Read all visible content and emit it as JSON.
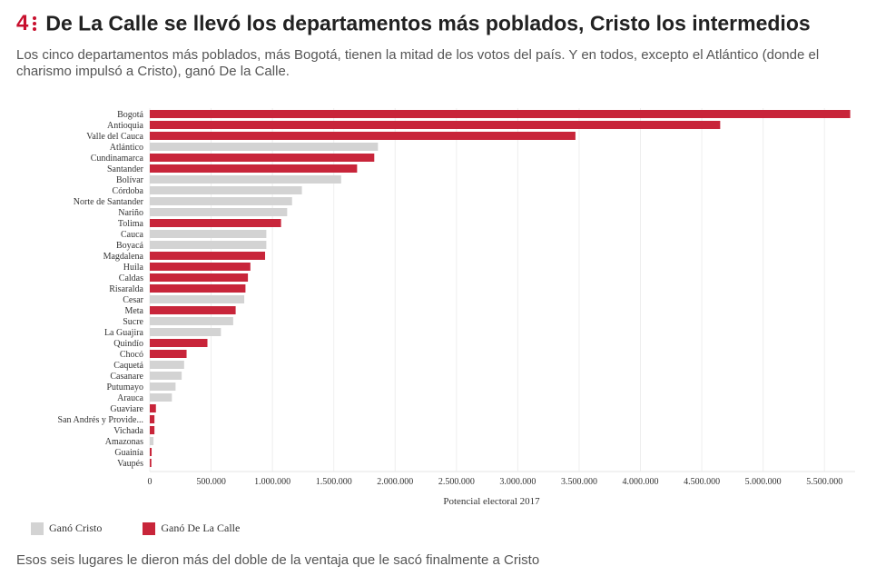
{
  "header": {
    "number": "4",
    "title": "De La Calle se llevó los departamentos más poblados, Cristo los intermedios",
    "subtitle": "Los cinco departamentos más poblados, más Bogotá, tienen la mitad de los votos del país. Y en todos, excepto el Atlántico (donde el charismo impulsó a Cristo), ganó De la Calle."
  },
  "legend": {
    "cristo_label": "Ganó Cristo",
    "delacalle_label": "Ganó De La Calle"
  },
  "colors": {
    "cristo": "#d3d3d3",
    "delacalle": "#c8253a",
    "accent": "#c8102e"
  },
  "footnote": "Esos seis lugares le dieron más del doble de la ventaja que le sacó finalmente a Cristo",
  "chart_data": {
    "type": "bar",
    "orientation": "horizontal",
    "xlabel": "Potencial electoral 2017",
    "xlim": [
      0,
      5750000
    ],
    "xticks": [
      0,
      500000,
      1000000,
      1500000,
      2000000,
      2500000,
      3000000,
      3500000,
      4000000,
      4500000,
      5000000,
      5500000
    ],
    "xtick_labels": [
      "0",
      "500.000",
      "1.000.000",
      "1.500.000",
      "2.000.000",
      "2.500.000",
      "3.000.000",
      "3.500.000",
      "4.000.000",
      "4.500.000",
      "5.000.000",
      "5.500.000"
    ],
    "grid": true,
    "legend_position": "bottom-left",
    "categories": [
      "Bogotá",
      "Antioquia",
      "Valle del Cauca",
      "Atlántico",
      "Cundinamarca",
      "Santander",
      "Bolívar",
      "Córdoba",
      "Norte de Santander",
      "Nariño",
      "Tolima",
      "Cauca",
      "Boyacá",
      "Magdalena",
      "Huila",
      "Caldas",
      "Risaralda",
      "Cesar",
      "Meta",
      "Sucre",
      "La Guajira",
      "Quindío",
      "Chocó",
      "Caquetá",
      "Casanare",
      "Putumayo",
      "Arauca",
      "Guaviare",
      "San Andrés y Provide...",
      "Vichada",
      "Amazonas",
      "Guainía",
      "Vaupés"
    ],
    "values": [
      5710000,
      4650000,
      3470000,
      1860000,
      1830000,
      1690000,
      1560000,
      1240000,
      1160000,
      1120000,
      1070000,
      950000,
      950000,
      940000,
      820000,
      800000,
      780000,
      770000,
      700000,
      680000,
      580000,
      470000,
      300000,
      280000,
      260000,
      210000,
      180000,
      50000,
      38000,
      38000,
      30000,
      15000,
      13000
    ],
    "winner": [
      "delacalle",
      "delacalle",
      "delacalle",
      "cristo",
      "delacalle",
      "delacalle",
      "cristo",
      "cristo",
      "cristo",
      "cristo",
      "delacalle",
      "cristo",
      "cristo",
      "delacalle",
      "delacalle",
      "delacalle",
      "delacalle",
      "cristo",
      "delacalle",
      "cristo",
      "cristo",
      "delacalle",
      "delacalle",
      "cristo",
      "cristo",
      "cristo",
      "cristo",
      "delacalle",
      "delacalle",
      "delacalle",
      "cristo",
      "delacalle",
      "delacalle"
    ]
  }
}
